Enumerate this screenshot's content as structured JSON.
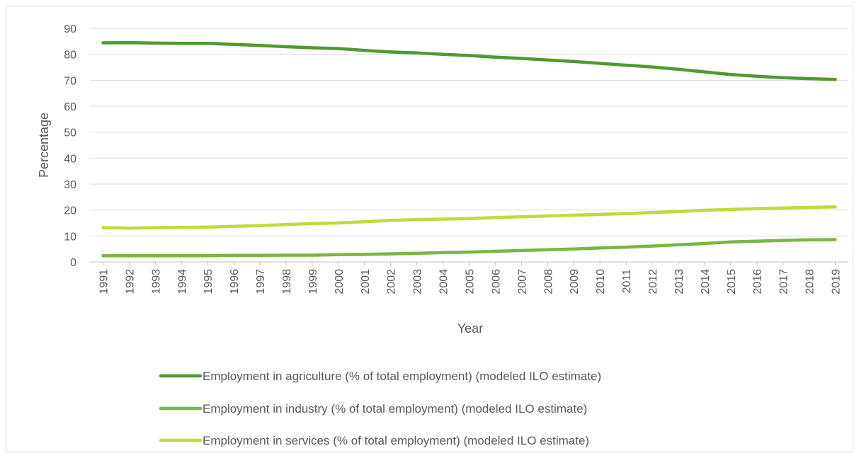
{
  "chart_data": {
    "type": "line",
    "title": "",
    "xlabel": "Year",
    "ylabel": "Percentage",
    "ylim": [
      0,
      90
    ],
    "yticks": [
      0,
      10,
      20,
      30,
      40,
      50,
      60,
      70,
      80,
      90
    ],
    "grid": true,
    "legend_position": "bottom",
    "x": [
      "1991",
      "1992",
      "1993",
      "1994",
      "1995",
      "1996",
      "1997",
      "1998",
      "1999",
      "2000",
      "2001",
      "2002",
      "2003",
      "2004",
      "2005",
      "2006",
      "2007",
      "2008",
      "2009",
      "2010",
      "2011",
      "2012",
      "2013",
      "2014",
      "2015",
      "2016",
      "2017",
      "2018",
      "2019"
    ],
    "series": [
      {
        "name": "Employment in agriculture (% of total employment) (modeled ILO estimate)",
        "color": "#4f9a30",
        "values": [
          84.4,
          84.5,
          84.3,
          84.2,
          84.2,
          83.8,
          83.4,
          82.9,
          82.5,
          82.2,
          81.5,
          80.9,
          80.5,
          80.0,
          79.5,
          78.9,
          78.4,
          77.8,
          77.2,
          76.5,
          75.8,
          75.1,
          74.2,
          73.2,
          72.2,
          71.5,
          71.0,
          70.6,
          70.3
        ]
      },
      {
        "name": "Employment in industry (% of total employment) (modeled ILO estimate)",
        "color": "#7ab640",
        "values": [
          2.4,
          2.4,
          2.4,
          2.4,
          2.4,
          2.5,
          2.5,
          2.6,
          2.6,
          2.8,
          2.9,
          3.1,
          3.3,
          3.6,
          3.8,
          4.1,
          4.4,
          4.7,
          5.0,
          5.4,
          5.7,
          6.1,
          6.6,
          7.1,
          7.7,
          8.0,
          8.3,
          8.5,
          8.6
        ]
      },
      {
        "name": "Employment in services (% of total employment) (modeled ILO estimate)",
        "color": "#c4d83e",
        "values": [
          13.2,
          13.0,
          13.2,
          13.3,
          13.4,
          13.7,
          14.0,
          14.4,
          14.8,
          15.0,
          15.5,
          16.0,
          16.3,
          16.5,
          16.7,
          17.1,
          17.4,
          17.7,
          18.0,
          18.3,
          18.6,
          19.0,
          19.4,
          19.9,
          20.2,
          20.5,
          20.8,
          21.0,
          21.2
        ]
      }
    ]
  }
}
